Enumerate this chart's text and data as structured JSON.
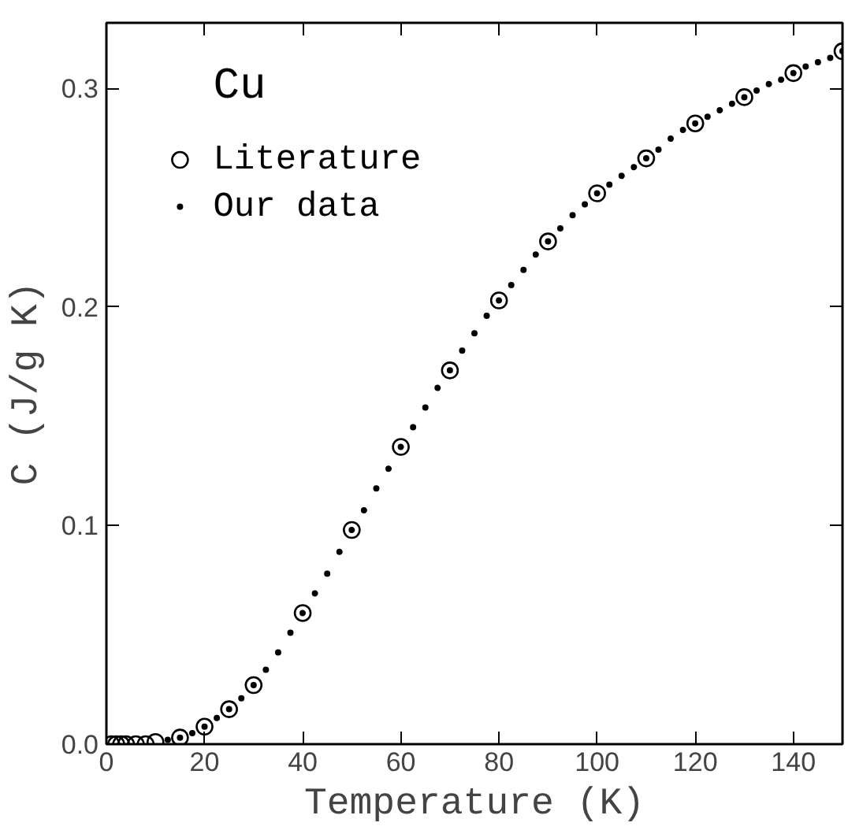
{
  "chart_data": {
    "type": "scatter",
    "xlabel": "Temperature (K)",
    "ylabel": "C (J/g K)",
    "legend_title": "Cu",
    "legend": "top left",
    "grid": false,
    "xlim": [
      0,
      150
    ],
    "ylim": [
      0,
      0.33
    ],
    "xticks": [
      0,
      20,
      40,
      60,
      80,
      100,
      120,
      140
    ],
    "yticks": [
      {
        "value": 0,
        "label": "0.0"
      },
      {
        "value": 0.1,
        "label": "0.1"
      },
      {
        "value": 0.2,
        "label": "0.2"
      },
      {
        "value": 0.3,
        "label": "0.3"
      }
    ],
    "series": [
      {
        "name": "Literature",
        "color": "#000000",
        "marker": "circle",
        "x": [
          1,
          2,
          3,
          4,
          6,
          8,
          10,
          15,
          20,
          25,
          30,
          40,
          50,
          60,
          70,
          80,
          90,
          100,
          110,
          120,
          130,
          140,
          150
        ],
        "values": [
          0.0,
          0.0,
          0.0,
          0.0,
          0.0,
          0.0,
          0.001,
          0.003,
          0.008,
          0.016,
          0.027,
          0.06,
          0.098,
          0.136,
          0.171,
          0.203,
          0.23,
          0.252,
          0.268,
          0.284,
          0.296,
          0.307,
          0.317
        ]
      },
      {
        "name": "Our data",
        "color": "#000000",
        "marker": "circle",
        "x": [
          12.5,
          15,
          17.5,
          20,
          22.5,
          25,
          27.5,
          30,
          32.5,
          35,
          37.5,
          40,
          42.5,
          45,
          47.5,
          50,
          52.5,
          55,
          57.5,
          60,
          62.5,
          65,
          67.5,
          70,
          72.5,
          75,
          77.5,
          80,
          82.5,
          85,
          87.5,
          90,
          92.5,
          95,
          97.5,
          100,
          102.5,
          105,
          107.5,
          110,
          112.5,
          115,
          117.5,
          120,
          122.5,
          125,
          127.5,
          130,
          132.5,
          135,
          137.5,
          140,
          142.5,
          145,
          147.5,
          150
        ],
        "values": [
          0.002,
          0.003,
          0.005,
          0.008,
          0.012,
          0.016,
          0.021,
          0.027,
          0.034,
          0.042,
          0.051,
          0.06,
          0.069,
          0.078,
          0.088,
          0.098,
          0.107,
          0.117,
          0.126,
          0.136,
          0.145,
          0.154,
          0.163,
          0.171,
          0.18,
          0.188,
          0.196,
          0.203,
          0.21,
          0.217,
          0.224,
          0.23,
          0.236,
          0.242,
          0.247,
          0.252,
          0.256,
          0.26,
          0.264,
          0.268,
          0.272,
          0.277,
          0.281,
          0.284,
          0.287,
          0.29,
          0.293,
          0.296,
          0.299,
          0.302,
          0.304,
          0.307,
          0.31,
          0.312,
          0.314,
          0.317
        ]
      }
    ]
  }
}
